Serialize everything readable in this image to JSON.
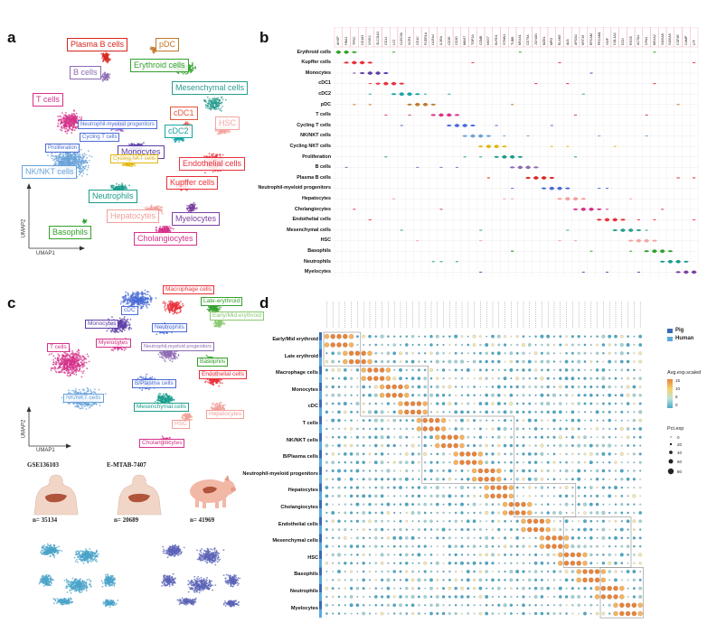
{
  "panels": {
    "a": "a",
    "b": "b",
    "c": "c",
    "d": "d"
  },
  "panel_a": {
    "x_axis": "UMAP1",
    "y_axis": "UMAP2",
    "labels": [
      {
        "text": "Plasma B cells",
        "color": "#d7261e"
      },
      {
        "text": "pDC",
        "color": "#c07a2a"
      },
      {
        "text": "B cells",
        "color": "#8c6bb1"
      },
      {
        "text": "Erythroid cells",
        "color": "#33a02c"
      },
      {
        "text": "Mesenchymal cells",
        "color": "#2a9d8f"
      },
      {
        "text": "T cells",
        "color": "#d6328a"
      },
      {
        "text": "Neutrophil-myeloid progenitors",
        "color": "#4a6bd6"
      },
      {
        "text": "Cycling T cells",
        "color": "#4a6bd6"
      },
      {
        "text": "Proliferation",
        "color": "#4a6bd6"
      },
      {
        "text": "cDC1",
        "color": "#e8553f"
      },
      {
        "text": "HSC",
        "color": "#f4a6a0"
      },
      {
        "text": "cDC2",
        "color": "#1aa5a5"
      },
      {
        "text": "Monocytes",
        "color": "#5e3fa8"
      },
      {
        "text": "Cycling NKT cells",
        "color": "#e3b80f"
      },
      {
        "text": "NK/NKT cells",
        "color": "#6aa3d9"
      },
      {
        "text": "Endothelial cells",
        "color": "#e8303a"
      },
      {
        "text": "Neutrophils",
        "color": "#1a9c8c"
      },
      {
        "text": "Kupffer cells",
        "color": "#e8303a"
      },
      {
        "text": "Hepatocytes",
        "color": "#f0a09a"
      },
      {
        "text": "Myelocytes",
        "color": "#7b3fa0"
      },
      {
        "text": "Basophils",
        "color": "#33a02c"
      },
      {
        "text": "Cholangiocytes",
        "color": "#d6328a"
      }
    ]
  },
  "panel_b": {
    "rows": [
      "Erythroid cells",
      "Kupffer cells",
      "Monocytes",
      "cDC1",
      "cDC2",
      "pDC",
      "T cells",
      "Cycling T cells",
      "NK/NKT cells",
      "Cycling NKT cells",
      "Proliferation",
      "B cells",
      "Plasma B cells",
      "Neutrophil-myeloid progenitors",
      "Hepatocytes",
      "Cholangiocytes",
      "Endothelial cells",
      "Mesenchymal cells",
      "HSC",
      "Basophils",
      "Neutrophils",
      "Myelocytes"
    ],
    "genes": [
      "AHSP",
      "HBA1",
      "TFRC",
      "CD163",
      "VSIG4",
      "SLC11A1",
      "CD14",
      "LYZ",
      "CLEC9A",
      "XCR1",
      "CD1C",
      "FCER1A",
      "LILRA4",
      "IL3RA",
      "CD3E",
      "CD3D",
      "MKI67",
      "TOP2A",
      "GZMB",
      "NKG7",
      "KLRD1",
      "STMN1",
      "TUBB",
      "MS4A1",
      "CD79A",
      "JCHAIN",
      "MZB1",
      "MPO",
      "ELANE",
      "ALB",
      "APOA1",
      "KRT19",
      "EPCAM",
      "PECAM1",
      "VWF",
      "COL1A2",
      "DCN",
      "RGS5",
      "ACTA2",
      "CPA3",
      "MS4A2",
      "S100A8",
      "S100A9",
      "CSF3R",
      "CAMP",
      "LTF"
    ]
  },
  "panel_c": {
    "x_axis": "UMAP1",
    "y_axis": "UMAP2",
    "labels": [
      {
        "text": "Macrophage cells",
        "color": "#e8303a"
      },
      {
        "text": "Late-erythroid",
        "color": "#33a02c"
      },
      {
        "text": "cDC",
        "color": "#4a6bd6"
      },
      {
        "text": "Early/Mid erythroid",
        "color": "#88c870"
      },
      {
        "text": "Monocytes",
        "color": "#5e3fa8"
      },
      {
        "text": "Neutrophils",
        "color": "#4a6bd6"
      },
      {
        "text": "Myelocytes",
        "color": "#d6328a"
      },
      {
        "text": "T cells",
        "color": "#d6328a"
      },
      {
        "text": "Neutrophil-myeloid progenitors",
        "color": "#8c6bb1"
      },
      {
        "text": "Basophils",
        "color": "#33a02c"
      },
      {
        "text": "Endothelial cells",
        "color": "#e8303a"
      },
      {
        "text": "B/Plasma cells",
        "color": "#4a6bd6"
      },
      {
        "text": "NK/NKT cells",
        "color": "#6aa3d9"
      },
      {
        "text": "Mesenchymal cells",
        "color": "#1a9c8c"
      },
      {
        "text": "Hepatocytes",
        "color": "#f0a09a"
      },
      {
        "text": "HSC",
        "color": "#f0a09a"
      },
      {
        "text": "Cholangiocytes",
        "color": "#d6328a"
      }
    ],
    "datasets": [
      {
        "id": "GSE136103",
        "n": "n= 35134"
      },
      {
        "id": "E-MTAB-7407",
        "n": "n= 20689"
      },
      {
        "id": "",
        "n": "n= 41969"
      }
    ]
  },
  "panel_d": {
    "rows": [
      "Early/Mid erythroid",
      "Late erythroid",
      "Macrophage cells",
      "Monocytes",
      "cDC",
      "T cells",
      "NK/NKT cells",
      "B/Plasma cells",
      "Neutrophil-myeloid progenitors",
      "Hepatocytes",
      "Cholangiocytes",
      "Endothelial cells",
      "Mesenchymal cells",
      "HSC",
      "Basophils",
      "Neutrophils",
      "Myelocytes"
    ],
    "legend": {
      "species": [
        {
          "name": "Pig",
          "color": "#3b6bb5"
        },
        {
          "name": "Human",
          "color": "#5aa9dd"
        }
      ],
      "color_title": "Avg.exp.scaled",
      "color_ticks": [
        "15",
        "10",
        "5",
        "0"
      ],
      "size_title": "Pct.exp",
      "size_ticks": [
        "0",
        "20",
        "40",
        "60",
        "80"
      ]
    }
  }
}
